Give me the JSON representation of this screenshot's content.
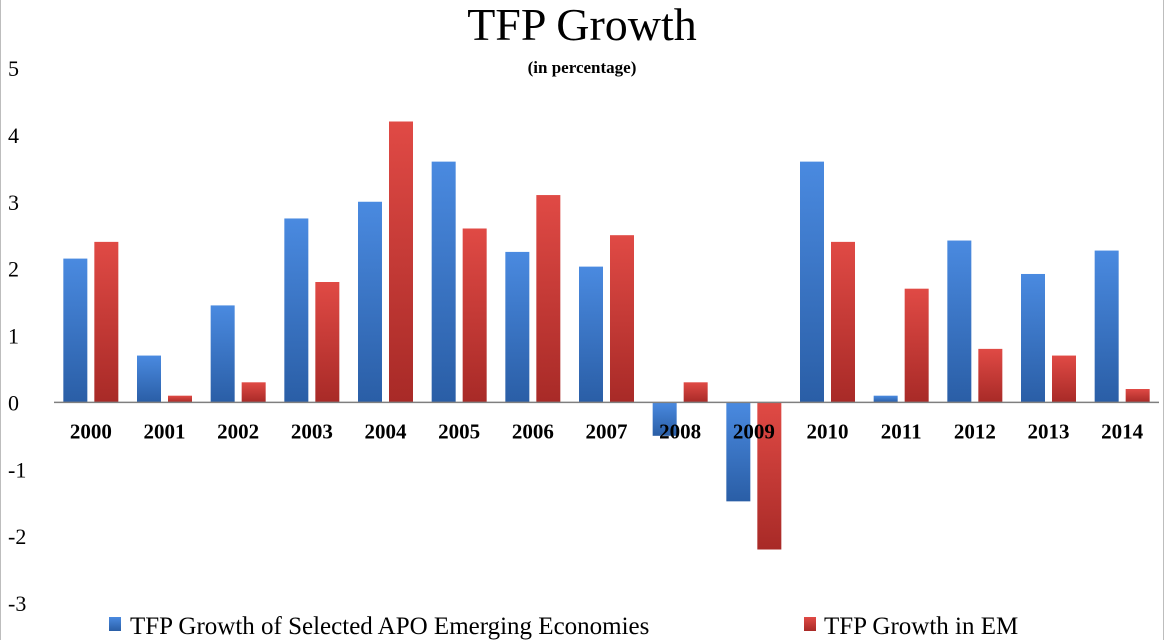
{
  "chart_data": {
    "type": "bar",
    "title": "TFP Growth",
    "subtitle": "(in percentage)",
    "categories": [
      "2000",
      "2001",
      "2002",
      "2003",
      "2004",
      "2005",
      "2006",
      "2007",
      "2008",
      "2009",
      "2010",
      "2011",
      "2012",
      "2013",
      "2014"
    ],
    "series": [
      {
        "name": "TFP Growth of Selected APO Emerging Economies",
        "color": "#3b78c9",
        "values": [
          2.15,
          0.7,
          1.45,
          2.75,
          3.0,
          3.6,
          2.25,
          2.03,
          -0.5,
          -1.48,
          3.6,
          0.1,
          2.42,
          1.92,
          2.27
        ]
      },
      {
        "name": "TFP Growth in EM",
        "color": "#c93a36",
        "values": [
          2.4,
          0.1,
          0.3,
          1.8,
          4.2,
          2.6,
          3.1,
          2.5,
          0.3,
          -2.2,
          2.4,
          1.7,
          0.8,
          0.7,
          0.2
        ]
      }
    ],
    "ylim": [
      -3,
      5
    ],
    "yticks": [
      "5",
      "4",
      "3",
      "2",
      "1",
      "0",
      "-1",
      "-2",
      "-3"
    ],
    "grid": false,
    "legend_position": "bottom"
  }
}
